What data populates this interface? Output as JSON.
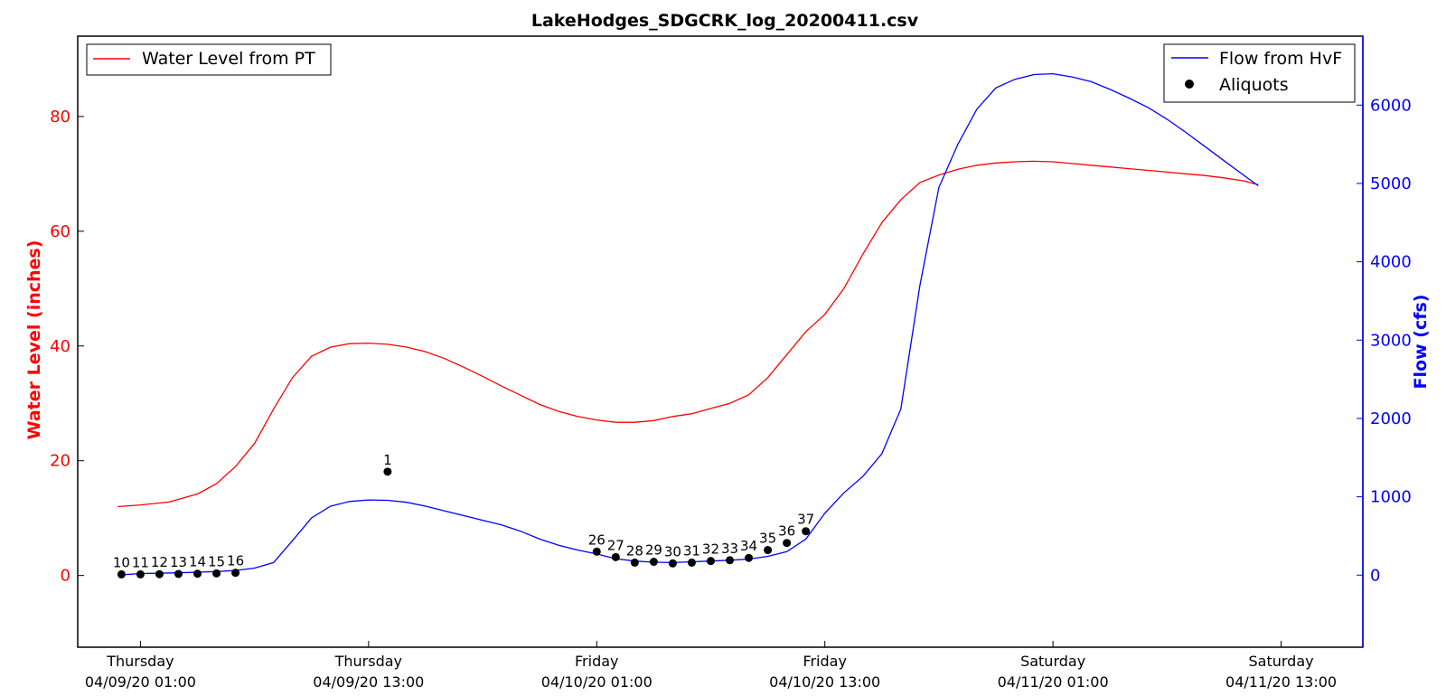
{
  "chart_data": {
    "type": "line",
    "title": "LakeHodges_SDGCRK_log_20200411.csv",
    "xlabel": "",
    "ylabel_left": "Water Level (inches)",
    "ylabel_right": "Flow (cfs)",
    "x_ticks": [
      {
        "day": "Thursday",
        "datetime": "04/09/20 01:00",
        "h": 0
      },
      {
        "day": "Thursday",
        "datetime": "04/09/20 13:00",
        "h": 12
      },
      {
        "day": "Friday",
        "datetime": "04/10/20 01:00",
        "h": 24
      },
      {
        "day": "Friday",
        "datetime": "04/10/20 13:00",
        "h": 36
      },
      {
        "day": "Saturday",
        "datetime": "04/11/20 01:00",
        "h": 48
      },
      {
        "day": "Saturday",
        "datetime": "04/11/20 13:00",
        "h": 60
      }
    ],
    "xlim_hours_from_04_09_20_01_00": [
      -3.3,
      64.3
    ],
    "ylim_left": [
      -12.5,
      94
    ],
    "ylim_right": [
      -920,
      6880
    ],
    "yticks_left": [
      0,
      20,
      40,
      60,
      80
    ],
    "yticks_right": [
      0,
      1000,
      2000,
      3000,
      4000,
      5000,
      6000
    ],
    "legend_left": {
      "position": "upper left",
      "entries": [
        {
          "label": "Water Level from PT",
          "color": "#ff0000",
          "marker": "line"
        }
      ]
    },
    "legend_right": {
      "position": "upper right",
      "entries": [
        {
          "label": "Flow from HvF",
          "color": "#0000ff",
          "marker": "line"
        },
        {
          "label": "Aliquots",
          "color": "#000000",
          "marker": "dot"
        }
      ]
    },
    "series": [
      {
        "name": "Water Level from PT",
        "axis": "left",
        "color": "#ff0000",
        "x": [
          -1.2,
          0,
          1.5,
          3,
          4,
          5,
          6,
          7,
          8,
          9,
          10,
          11,
          12,
          13,
          14,
          15,
          16,
          17,
          18,
          19,
          20,
          21,
          22,
          23,
          24,
          25,
          26,
          27,
          28,
          29,
          30,
          31,
          32,
          33,
          34,
          35,
          36,
          37,
          38,
          39,
          40,
          41,
          42,
          43,
          44,
          45,
          46,
          47,
          48,
          49,
          50,
          51,
          52,
          53,
          54,
          55,
          56,
          57,
          58,
          58.8
        ],
        "y": [
          12,
          12.3,
          12.8,
          14.2,
          16,
          19,
          23,
          29,
          34.5,
          38.2,
          39.8,
          40.4,
          40.5,
          40.3,
          39.8,
          39,
          37.8,
          36.3,
          34.7,
          33,
          31.4,
          29.8,
          28.6,
          27.7,
          27.1,
          26.7,
          26.7,
          27,
          27.7,
          28.2,
          29.1,
          30,
          31.5,
          34.5,
          38.5,
          42.5,
          45.5,
          50,
          56,
          61.5,
          65.5,
          68.5,
          69.8,
          70.8,
          71.5,
          71.9,
          72.1,
          72.2,
          72.1,
          71.8,
          71.5,
          71.2,
          70.9,
          70.6,
          70.3,
          70,
          69.7,
          69.3,
          68.8,
          68.1
        ]
      },
      {
        "name": "Flow from HvF",
        "axis": "right",
        "color": "#0000ff",
        "x": [
          -1.2,
          0,
          2,
          4,
          5,
          6,
          7,
          8,
          9,
          10,
          11,
          12,
          13,
          14,
          15,
          16,
          17,
          18,
          19,
          20,
          21,
          22,
          23,
          24,
          25,
          26,
          27,
          28,
          29,
          30,
          31,
          32,
          33,
          34,
          35,
          36,
          37,
          38,
          39,
          40,
          41,
          42,
          43,
          44,
          45,
          46,
          47,
          48,
          49,
          50,
          51,
          52,
          53,
          54,
          55,
          56,
          57,
          58,
          58.8
        ],
        "y": [
          0,
          20,
          30,
          45,
          60,
          90,
          160,
          440,
          730,
          880,
          940,
          960,
          955,
          930,
          880,
          820,
          760,
          700,
          640,
          560,
          460,
          380,
          320,
          270,
          210,
          180,
          165,
          160,
          170,
          180,
          190,
          205,
          240,
          300,
          460,
          790,
          1050,
          1260,
          1550,
          2120,
          3700,
          4950,
          5500,
          5950,
          6220,
          6330,
          6390,
          6400,
          6360,
          6300,
          6200,
          6090,
          5970,
          5820,
          5650,
          5470,
          5290,
          5110,
          4970
        ]
      },
      {
        "name": "Aliquots",
        "axis": "right",
        "color": "#000000",
        "marker": "dot",
        "x": [
          -1,
          0,
          1,
          2,
          3,
          4,
          5,
          13,
          24,
          25,
          26,
          27,
          28,
          29,
          30,
          31,
          32,
          33,
          34,
          35
        ],
        "y": [
          10,
          10,
          12,
          15,
          18,
          22,
          30,
          1320,
          300,
          230,
          160,
          170,
          150,
          160,
          180,
          190,
          220,
          320,
          410,
          560
        ],
        "labels": [
          "10",
          "11",
          "12",
          "13",
          "14",
          "15",
          "16",
          "1",
          "26",
          "27",
          "28",
          "29",
          "30",
          "31",
          "32",
          "33",
          "34",
          "35",
          "36",
          "37"
        ]
      }
    ]
  }
}
